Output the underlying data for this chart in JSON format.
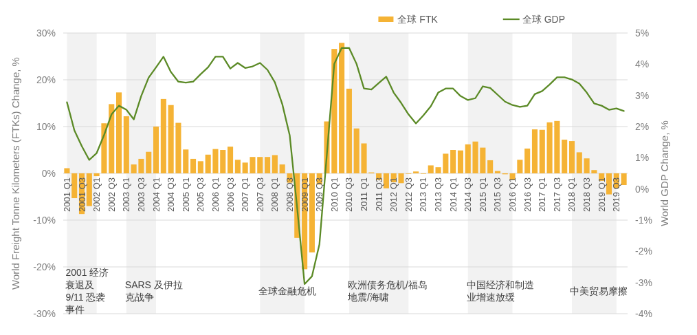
{
  "chart_data": {
    "type": "bar",
    "categories": [
      "2001 Q1",
      null,
      "2001 Q3",
      null,
      "2002 Q1",
      null,
      "2002 Q3",
      null,
      "2003 Q1",
      null,
      "2003 Q3",
      null,
      "2004 Q1",
      null,
      "2004 Q3",
      null,
      "2005 Q1",
      null,
      "2005 Q3",
      null,
      "2006 Q1",
      null,
      "2006 Q3",
      null,
      "2007 Q1",
      null,
      "2007 Q3",
      null,
      "2008 Q1",
      null,
      "2008 Q3",
      null,
      "2009 Q1",
      null,
      "2009 Q3",
      null,
      "2010 Q1",
      null,
      "2010 Q3",
      null,
      "2011 Q1",
      null,
      "2011 Q3",
      null,
      "2012 Q1",
      null,
      "2012 Q3",
      null,
      "2013 Q1",
      null,
      "2013 Q3",
      null,
      "2014 Q1",
      null,
      "2014 Q3",
      null,
      "2015 Q1",
      null,
      "2015 Q3",
      null,
      "2016 Q1",
      null,
      "2016 Q3",
      null,
      "2017 Q1",
      null,
      "2017 Q3",
      null,
      "2018 Q1",
      null,
      "2018 Q3",
      null,
      "2019 Q1",
      null,
      "2019 Q3",
      null
    ],
    "series": [
      {
        "name": "全球 FTK",
        "color": "#f5b335",
        "values": [
          1.1,
          -5.3,
          -8.7,
          -7.0,
          -0.6,
          10.7,
          14.8,
          17.3,
          12.2,
          1.9,
          3.1,
          4.6,
          10.0,
          15.9,
          14.6,
          10.8,
          5.1,
          3.1,
          2.6,
          4.0,
          5.2,
          5.0,
          5.7,
          2.9,
          2.3,
          3.5,
          3.5,
          3.5,
          3.9,
          1.9,
          -2.0,
          -13.8,
          -20.5,
          -16.9,
          -2.4,
          11.1,
          26.6,
          27.9,
          18.1,
          9.6,
          6.4,
          0.2,
          -1.4,
          -3.2,
          -1.9,
          -2.1,
          -0.1,
          0.4,
          -0.1,
          1.7,
          1.3,
          4.2,
          5.0,
          4.9,
          6.2,
          6.8,
          5.5,
          2.8,
          0.5,
          -0.2,
          -1.4,
          2.9,
          5.3,
          9.4,
          9.3,
          10.9,
          11.2,
          7.2,
          6.9,
          4.5,
          3.2,
          0.7,
          -1.6,
          -4.5,
          -3.2,
          -2.5
        ]
      },
      {
        "name": "全球 GDP",
        "type": "line",
        "axis": "y2",
        "color": "#5b8a26",
        "values": [
          2.78,
          1.88,
          1.37,
          0.93,
          1.15,
          1.73,
          2.39,
          2.67,
          2.54,
          2.23,
          2.98,
          3.57,
          3.9,
          4.24,
          3.75,
          3.44,
          3.41,
          3.44,
          3.68,
          3.9,
          4.24,
          4.24,
          3.86,
          4.04,
          3.88,
          3.93,
          4.04,
          3.82,
          3.42,
          2.72,
          1.72,
          -0.6,
          -3.05,
          -2.8,
          -1.78,
          1.1,
          4.01,
          4.52,
          4.52,
          4.01,
          3.22,
          3.19,
          3.4,
          3.6,
          3.09,
          2.76,
          2.39,
          2.1,
          2.36,
          2.65,
          3.09,
          3.22,
          3.22,
          2.98,
          2.85,
          2.91,
          3.29,
          3.24,
          3.02,
          2.8,
          2.69,
          2.63,
          2.67,
          3.04,
          3.14,
          3.35,
          3.58,
          3.58,
          3.51,
          3.38,
          3.09,
          2.74,
          2.67,
          2.54,
          2.58,
          2.5
        ]
      }
    ],
    "ylabel": "World Freight Tonne Kilometers (FTKs) Change, %",
    "y2label": "World GDP Change, %",
    "ylim": [
      -30,
      30
    ],
    "yticks": [
      {
        "value": -30,
        "label": "-30%"
      },
      {
        "value": -20,
        "label": "-20%"
      },
      {
        "value": -10,
        "label": "-10%"
      },
      {
        "value": 0,
        "label": "0%"
      },
      {
        "value": 10,
        "label": "10%"
      },
      {
        "value": 20,
        "label": "20%"
      },
      {
        "value": 30,
        "label": "30%"
      }
    ],
    "y2lim": [
      -4,
      5
    ],
    "y2ticks": [
      {
        "value": -4,
        "label": "-4%"
      },
      {
        "value": -3,
        "label": "-3%"
      },
      {
        "value": -2,
        "label": "-2%"
      },
      {
        "value": -1,
        "label": "-1%"
      },
      {
        "value": 0,
        "label": "0%"
      },
      {
        "value": 1,
        "label": "1%"
      },
      {
        "value": 2,
        "label": "2%"
      },
      {
        "value": 3,
        "label": "3%"
      },
      {
        "value": 4,
        "label": "4%"
      },
      {
        "value": 5,
        "label": "5%"
      }
    ],
    "grid": "y",
    "legend": "top right",
    "bands": [
      {
        "axis": "x",
        "from": "2001 Q1",
        "to": "2002 Q1",
        "label": "2001 经济衰退及9/11 恐袭事件",
        "color": "#f2f2f2"
      },
      {
        "axis": "x",
        "from": "2003 Q1",
        "to": "2004 Q1",
        "label": "SARS 及伊拉克战争",
        "color": "#f2f2f2"
      },
      {
        "axis": "x",
        "from": "2007 Q3",
        "to": "2009 Q1",
        "label": "全球金融危机",
        "color": "#f2f2f2"
      },
      {
        "axis": "x",
        "from": "2010 Q3",
        "to": "2012 Q3",
        "label": "欧洲债务危机/福岛地震/海啸",
        "color": "#f2f2f2"
      },
      {
        "axis": "x",
        "from": "2014 Q3",
        "to": "2016 Q1",
        "label": "中国经济和制造业增速放缓",
        "color": "#f2f2f2"
      },
      {
        "axis": "x",
        "from": "2018 Q1",
        "to": "2019 Q3",
        "label": "中美贸易摩擦",
        "color": "#f2f2f2"
      }
    ]
  }
}
